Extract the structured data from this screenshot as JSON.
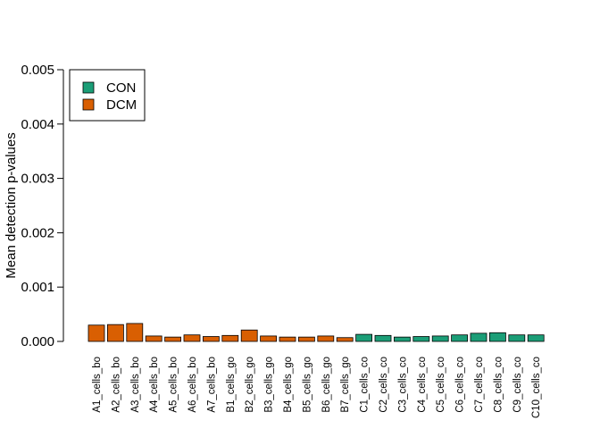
{
  "chart_data": {
    "type": "bar",
    "title": "",
    "xlabel": "",
    "ylabel": "Mean detection p-values",
    "ylim": [
      0,
      0.005
    ],
    "yticks": [
      "0.000",
      "0.001",
      "0.002",
      "0.003",
      "0.004",
      "0.005"
    ],
    "grid": false,
    "legend_position": "top-left",
    "legend": [
      {
        "name": "CON",
        "color": "#1B9E77"
      },
      {
        "name": "DCM",
        "color": "#D95F02"
      }
    ],
    "categories": [
      "A1_cells_bo",
      "A2_cells_bo",
      "A3_cells_bo",
      "A4_cells_bo",
      "A5_cells_bo",
      "A6_cells_bo",
      "A7_cells_bo",
      "B1_cells_go",
      "B2_cells_go",
      "B3_cells_go",
      "B4_cells_go",
      "B5_cells_go",
      "B6_cells_go",
      "B7_cells_go",
      "C1_cells_co",
      "C2_cells_co",
      "C3_cells_co",
      "C4_cells_co",
      "C5_cells_co",
      "C6_cells_co",
      "C7_cells_co",
      "C8_cells_co",
      "C9_cells_co",
      "C10_cells_co"
    ],
    "values": [
      0.0003,
      0.00031,
      0.00033,
      0.0001,
      8e-05,
      0.00012,
      9e-05,
      0.00011,
      0.00021,
      0.0001,
      8e-05,
      8e-05,
      0.0001,
      7e-05,
      0.00013,
      0.00011,
      8e-05,
      9e-05,
      0.0001,
      0.00012,
      0.00015,
      0.00016,
      0.00012,
      0.00012
    ],
    "groups": [
      "DCM",
      "DCM",
      "DCM",
      "DCM",
      "DCM",
      "DCM",
      "DCM",
      "DCM",
      "DCM",
      "DCM",
      "DCM",
      "DCM",
      "DCM",
      "DCM",
      "CON",
      "CON",
      "CON",
      "CON",
      "CON",
      "CON",
      "CON",
      "CON",
      "CON",
      "CON"
    ]
  }
}
